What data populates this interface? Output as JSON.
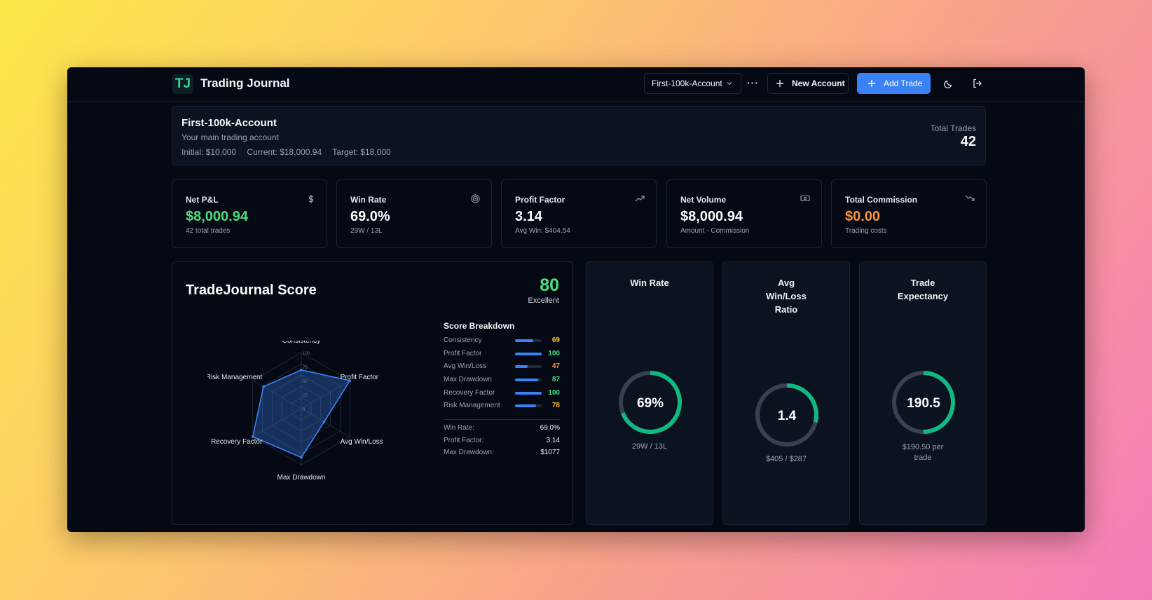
{
  "header": {
    "logo_text": "TJ",
    "app_title": "Trading Journal",
    "account_select": "First-100k-Account",
    "more_label": "···",
    "new_account_label": "New Account",
    "add_trade_label": "Add Trade"
  },
  "account": {
    "name": "First-100k-Account",
    "description": "Your main trading account",
    "initial": "Initial: $10,000",
    "current": "Current: $18,000.94",
    "target": "Target: $18,000",
    "total_trades_label": "Total Trades",
    "total_trades_value": "42"
  },
  "stats": [
    {
      "label": "Net P&L",
      "value": "$8,000.94",
      "sub": "42 total trades",
      "icon": "dollar-icon",
      "color": "#4ade80"
    },
    {
      "label": "Win Rate",
      "value": "69.0%",
      "sub": "29W / 13L",
      "icon": "target-icon",
      "color": "#f9fafb"
    },
    {
      "label": "Profit Factor",
      "value": "3.14",
      "sub": "Avg Win: $404.54",
      "icon": "trending-up-icon",
      "color": "#f9fafb"
    },
    {
      "label": "Net Volume",
      "value": "$8,000.94",
      "sub": "Amount - Commission",
      "icon": "banknote-icon",
      "color": "#f9fafb"
    },
    {
      "label": "Total Commission",
      "value": "$0.00",
      "sub": "Trading costs",
      "icon": "trending-down-icon",
      "color": "#fb923c"
    }
  ],
  "score": {
    "title": "TradeJournal Score",
    "value": "80",
    "grade": "Excellent",
    "breakdown_title": "Score Breakdown",
    "breakdown": [
      {
        "label": "Consistency",
        "value": 69,
        "color": "#fbbf24"
      },
      {
        "label": "Profit Factor",
        "value": 100,
        "color": "#4ade80"
      },
      {
        "label": "Avg Win/Loss",
        "value": 47,
        "color": "#fb923c"
      },
      {
        "label": "Max Drawdown",
        "value": 87,
        "color": "#4ade80"
      },
      {
        "label": "Recovery Factor",
        "value": 100,
        "color": "#4ade80"
      },
      {
        "label": "Risk Management",
        "value": 78,
        "color": "#fbbf24"
      }
    ],
    "summary": [
      {
        "label": "Win Rate:",
        "value": "69.0%"
      },
      {
        "label": "Profit Factor:",
        "value": "3.14"
      },
      {
        "label": "Max Drawdown:",
        "value": "$1077"
      }
    ],
    "radar_ticks": [
      "0",
      "25",
      "50",
      "75",
      "100"
    ]
  },
  "gauges": [
    {
      "title_lines": [
        "Win Rate"
      ],
      "display": "69%",
      "fraction": 0.69,
      "sub_lines": [
        "29W / 13L"
      ]
    },
    {
      "title_lines": [
        "Avg",
        "Win/Loss",
        "Ratio"
      ],
      "display": "1.4",
      "fraction": 0.29,
      "sub_lines": [
        "$405 / $287"
      ]
    },
    {
      "title_lines": [
        "Trade",
        "Expectancy"
      ],
      "display": "190.5",
      "fraction": 0.5,
      "sub_lines": [
        "$190.50 per",
        "trade"
      ]
    }
  ],
  "colors": {
    "accent": "#3b82f6",
    "gauge": "#10b981",
    "gauge_track": "#374151",
    "positive": "#4ade80",
    "warning": "#fb923c"
  }
}
